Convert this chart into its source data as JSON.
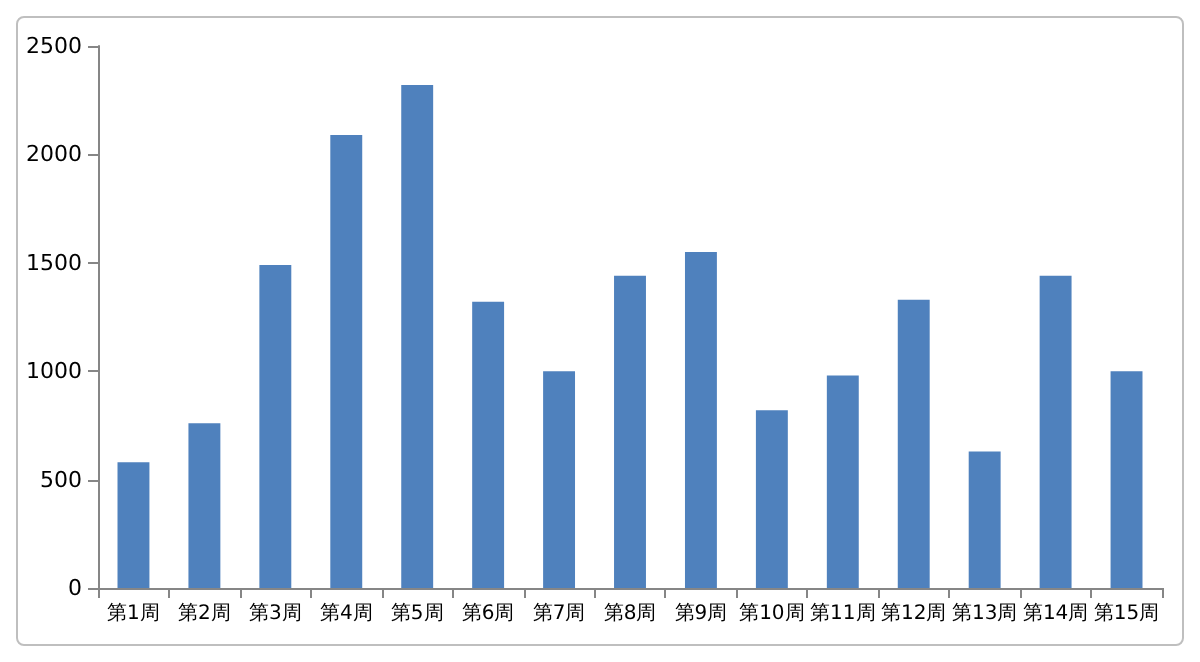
{
  "chart_data": {
    "type": "bar",
    "categories": [
      "第1周",
      "第2周",
      "第3周",
      "第4周",
      "第5周",
      "第6周",
      "第7周",
      "第8周",
      "第9周",
      "第10周",
      "第11周",
      "第12周",
      "第13周",
      "第14周",
      "第15周"
    ],
    "values": [
      580,
      760,
      1490,
      2090,
      2320,
      1320,
      1000,
      1440,
      1550,
      820,
      980,
      1330,
      630,
      1440,
      1000
    ],
    "color": "#4f81bd",
    "ylim": [
      0,
      2500
    ],
    "yticks": [
      0,
      500,
      1000,
      1500,
      2000,
      2500
    ],
    "grid": false
  }
}
